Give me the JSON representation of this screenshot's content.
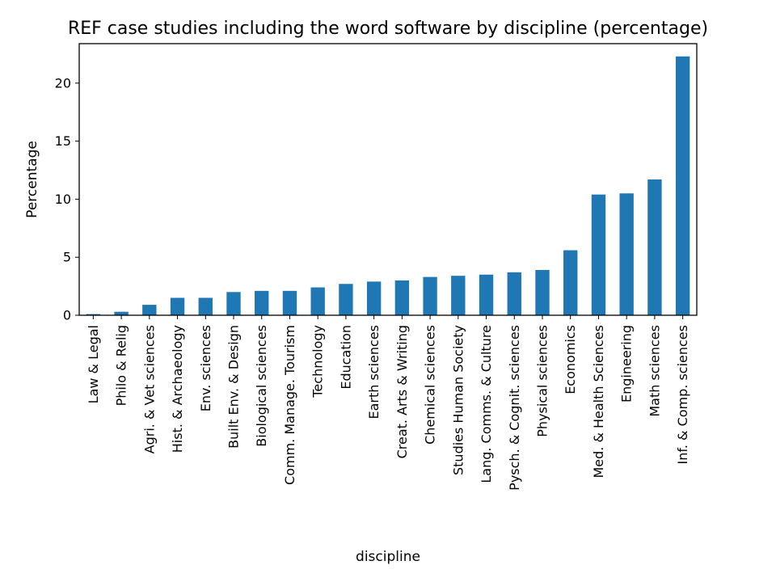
{
  "chart_data": {
    "type": "bar",
    "title": "REF case studies including the word software by discipline (percentage)",
    "xlabel": "discipline",
    "ylabel": "Percentage",
    "ylim": [
      0,
      23.4
    ],
    "yticks": [
      0,
      5,
      10,
      15,
      20
    ],
    "grid": false,
    "bar_color": "#1f77b4",
    "categories": [
      "Law & Legal",
      "Philo & Relig",
      "Agri. & Vet sciences",
      "Hist. & Archaeology",
      "Env. sciences",
      "Built Env. & Design",
      "Biological sciences",
      "Comm. Manage. Tourism",
      "Technology",
      "Education",
      "Earth sciences",
      "Creat. Arts & Writing",
      "Chemical sciences",
      "Studies Human Society",
      "Lang. Comms. & Culture",
      "Pysch. & Cognit. sciences",
      "Physical sciences",
      "Economics",
      "Med. & Health Sciences",
      "Engineering",
      "Math sciences",
      "Inf. & Comp. sciences"
    ],
    "values": [
      0.1,
      0.3,
      0.9,
      1.5,
      1.5,
      2.0,
      2.1,
      2.1,
      2.4,
      2.7,
      2.9,
      3.0,
      3.3,
      3.4,
      3.5,
      3.7,
      3.9,
      5.6,
      10.4,
      10.5,
      11.7,
      22.3
    ]
  }
}
